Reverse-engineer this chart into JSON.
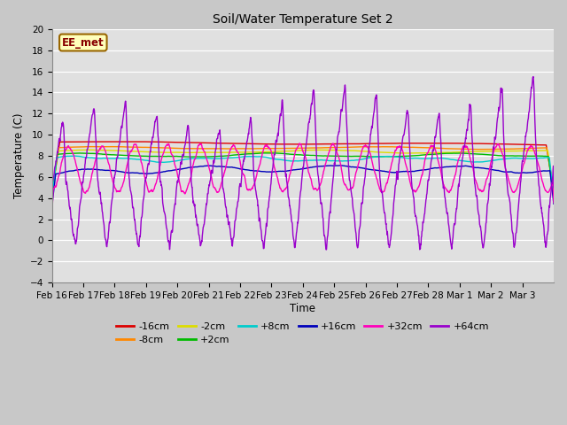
{
  "title": "Soil/Water Temperature Set 2",
  "xlabel": "Time",
  "ylabel": "Temperature (C)",
  "ylim": [
    -4,
    20
  ],
  "yticks": [
    -4,
    -2,
    0,
    2,
    4,
    6,
    8,
    10,
    12,
    14,
    16,
    18,
    20
  ],
  "annotation": "EE_met",
  "fig_bg_color": "#c8c8c8",
  "plot_bg_color": "#e0e0e0",
  "series": [
    {
      "label": "-16cm",
      "color": "#dd0000"
    },
    {
      "label": "-8cm",
      "color": "#ff8800"
    },
    {
      "label": "-2cm",
      "color": "#dddd00"
    },
    {
      "label": "+2cm",
      "color": "#00bb00"
    },
    {
      "label": "+8cm",
      "color": "#00cccc"
    },
    {
      "label": "+16cm",
      "color": "#0000bb"
    },
    {
      "label": "+32cm",
      "color": "#ff00bb"
    },
    {
      "label": "+64cm",
      "color": "#9900cc"
    }
  ],
  "xtick_dates": [
    "Feb 16",
    "Feb 17",
    "Feb 18",
    "Feb 19",
    "Feb 20",
    "Feb 21",
    "Feb 22",
    "Feb 23",
    "Feb 24",
    "Feb 25",
    "Feb 26",
    "Feb 27",
    "Feb 28",
    "Mar 1",
    "Mar 2",
    "Mar 3"
  ],
  "xtick_positions": [
    0,
    1,
    2,
    3,
    4,
    5,
    6,
    7,
    8,
    9,
    10,
    11,
    12,
    13,
    14,
    15
  ],
  "linewidth": 1.0
}
